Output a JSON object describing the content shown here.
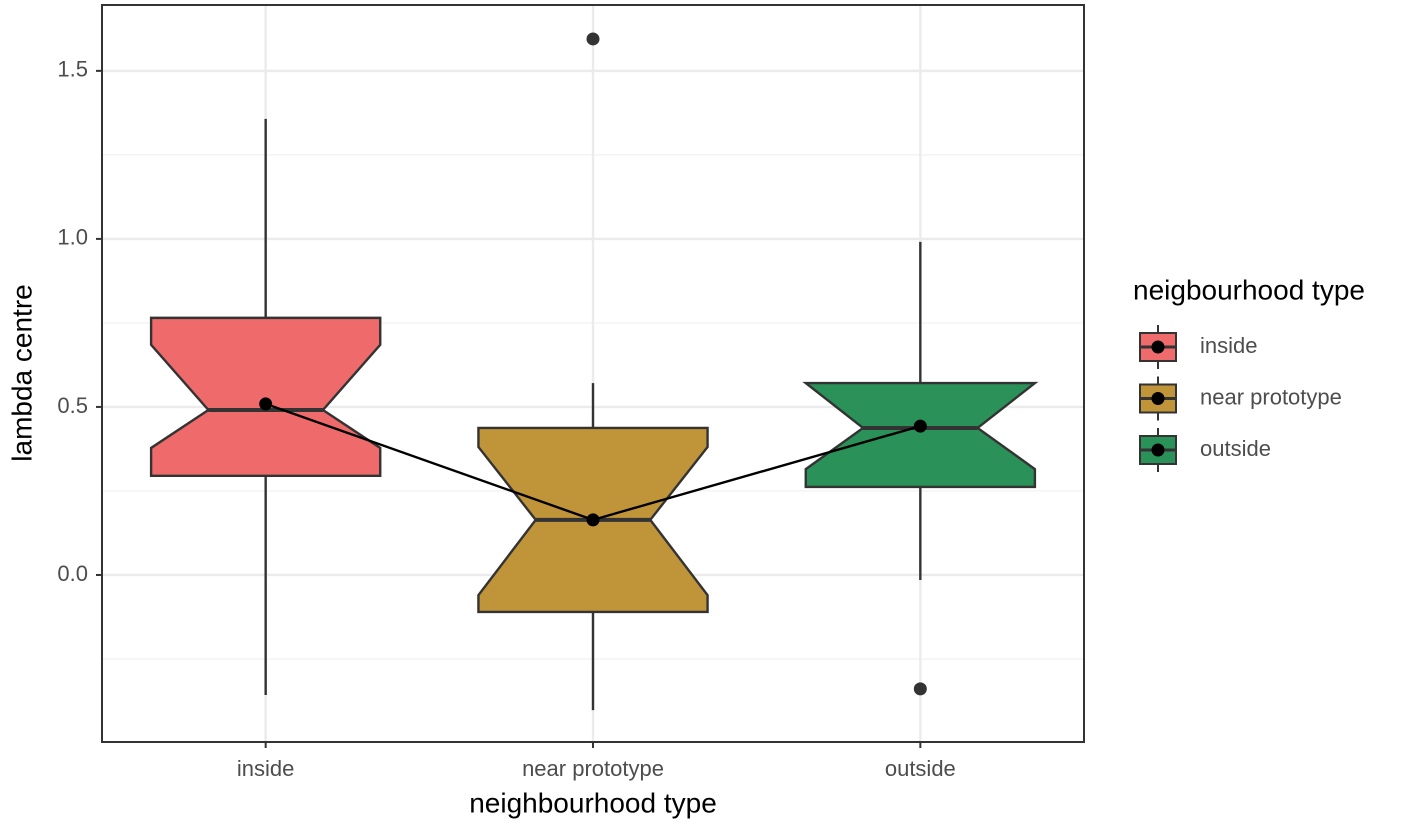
{
  "chart_data": {
    "type": "boxplot",
    "x_label": "neighbourhood type",
    "y_label": "lambda centre",
    "legend_title": "neigbourhood type",
    "categories": [
      "inside",
      "near prototype",
      "outside"
    ],
    "series": [
      {
        "name": "inside",
        "color": "#ef6b6b",
        "whisker_low": -0.357,
        "q1": 0.295,
        "notch_low": 0.378,
        "median": 0.491,
        "notch_high": 0.685,
        "q3": 0.765,
        "whisker_high": 1.357,
        "outliers": [],
        "mean": 0.509
      },
      {
        "name": "near prototype",
        "color": "#c09438",
        "whisker_low": -0.402,
        "q1": -0.11,
        "notch_low": -0.06,
        "median": 0.164,
        "notch_high": 0.381,
        "q3": 0.4375,
        "whisker_high": 0.571,
        "outliers": [
          1.595
        ],
        "mean": 0.164
      },
      {
        "name": "outside",
        "color": "#2a9158",
        "whisker_low": -0.015,
        "q1": 0.262,
        "notch_low": 0.315,
        "median": 0.4375,
        "notch_high": 0.571,
        "q3": 0.571,
        "whisker_high": 0.991,
        "outliers": [
          -0.339
        ],
        "mean": 0.443
      }
    ],
    "ylim": [
      -0.497,
      1.696
    ],
    "yticks": [
      {
        "value": 0,
        "label": "0.0"
      },
      0.5,
      {
        "value": 1,
        "label": "1.0"
      },
      1.5
    ],
    "minor_yticks": [
      -0.25,
      0.25,
      0.75,
      1.25
    ],
    "grid": true
  }
}
